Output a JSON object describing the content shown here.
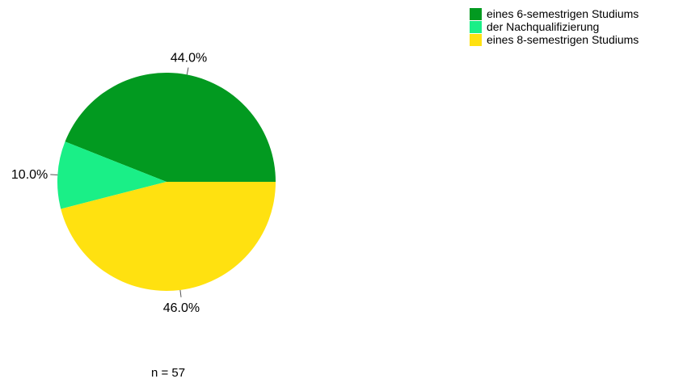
{
  "chart_data": {
    "type": "pie",
    "slices": [
      {
        "label": "eines 6-semestrigen Studiums",
        "value": 44.0,
        "value_label": "44.0%",
        "color": "#029a20"
      },
      {
        "label": "der Nachqualifizierung",
        "value": 10.0,
        "value_label": "10.0%",
        "color": "#1aef87"
      },
      {
        "label": "eines 8-semestrigen Studiums",
        "value": 46.0,
        "value_label": "46.0%",
        "color": "#ffe110"
      }
    ],
    "legend_position": "top-right",
    "start_angle_deg": 0,
    "direction": "counterclockwise"
  },
  "footnote": "n = 57"
}
